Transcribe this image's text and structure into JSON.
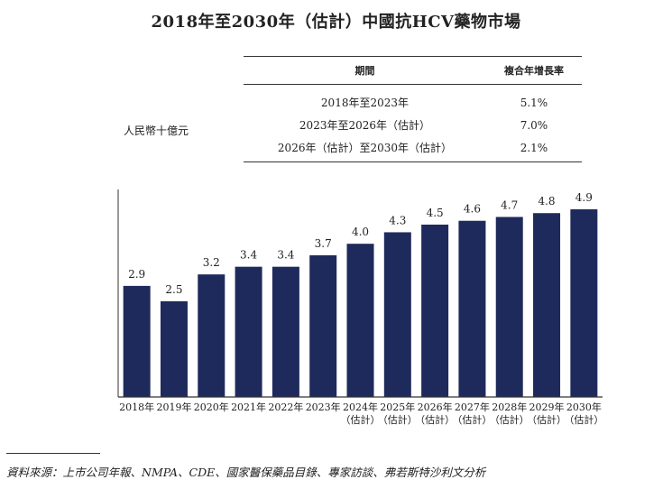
{
  "chart_data": {
    "type": "bar",
    "title": "2018年至2030年（估計）中國抗HCV藥物市場",
    "ylabel": "人民幣十億元",
    "categories": [
      [
        "2018年"
      ],
      [
        "2019年"
      ],
      [
        "2020年"
      ],
      [
        "2021年"
      ],
      [
        "2022年"
      ],
      [
        "2023年"
      ],
      [
        "2024年",
        "（估計）"
      ],
      [
        "2025年",
        "（估計）"
      ],
      [
        "2026年",
        "（估計）"
      ],
      [
        "2027年",
        "（估計）"
      ],
      [
        "2028年",
        "（估計）"
      ],
      [
        "2029年",
        "（估計）"
      ],
      [
        "2030年",
        "（估計）"
      ]
    ],
    "values": [
      2.9,
      2.5,
      3.2,
      3.4,
      3.4,
      3.7,
      4.0,
      4.3,
      4.5,
      4.6,
      4.7,
      4.8,
      4.9
    ],
    "value_labels": [
      "2.9",
      "2.5",
      "3.2",
      "3.4",
      "3.4",
      "3.7",
      "4.0",
      "4.3",
      "4.5",
      "4.6",
      "4.7",
      "4.8",
      "4.9"
    ],
    "ylim": [
      0,
      5.3
    ],
    "bar_color": "#1f2a5c",
    "cagr_table": {
      "headers": [
        "期間",
        "複合年增長率"
      ],
      "rows": [
        [
          "2018年至2023年",
          "5.1%"
        ],
        [
          "2023年至2026年（估計）",
          "7.0%"
        ],
        [
          "2026年（估計）至2030年（估計）",
          "2.1%"
        ]
      ]
    }
  },
  "source": "資料來源：上市公司年報、NMPA、CDE、國家醫保藥品目錄、專家訪談、弗若斯特沙利文分析"
}
